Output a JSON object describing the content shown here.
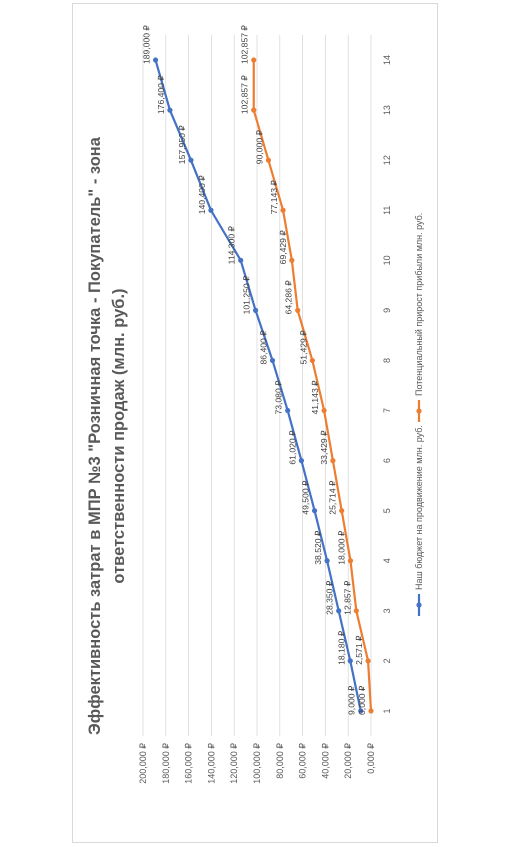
{
  "chart_data": {
    "type": "line",
    "title_line1": "Эффективность затрат в МПР №3 \"Розничная точка - Покупатель\" - зона",
    "title_line2": "ответственности  продаж (млн. руб.)",
    "x": [
      1,
      2,
      3,
      4,
      5,
      6,
      7,
      8,
      9,
      10,
      11,
      12,
      13,
      14
    ],
    "x_ticks": [
      "1",
      "2",
      "3",
      "4",
      "5",
      "6",
      "7",
      "8",
      "9",
      "10",
      "11",
      "12",
      "13",
      "14"
    ],
    "y_ticks": [
      "0,000 ₽",
      "20,000 ₽",
      "40,000 ₽",
      "60,000 ₽",
      "80,000 ₽",
      "100,000 ₽",
      "120,000 ₽",
      "140,000 ₽",
      "160,000 ₽",
      "180,000 ₽",
      "200,000 ₽"
    ],
    "ylim": [
      0,
      200000
    ],
    "grid": true,
    "legend_position": "bottom",
    "series": [
      {
        "name": "Наш бюджет на продвижение млн. руб.",
        "color": "#4472c4",
        "values": [
          9000,
          18180,
          28350,
          38520,
          49500,
          61020,
          73080,
          86400,
          101250,
          114300,
          140400,
          157950,
          176400,
          189000
        ],
        "labels": [
          "9,000 ₽",
          "18,180 ₽",
          "28,350 ₽",
          "38,520 ₽",
          "49,500 ₽",
          "61,020 ₽",
          "73,080 ₽",
          "86,400 ₽",
          "101,250 ₽",
          "114,300 ₽",
          "140,400 ₽",
          "157,950 ₽",
          "176,400 ₽",
          "189,000 ₽"
        ]
      },
      {
        "name": "Потенциальный прирост прибыли млн. руб.",
        "color": "#ed7d31",
        "values": [
          0,
          2571,
          12857,
          18000,
          25714,
          33429,
          41143,
          51429,
          64286,
          69429,
          77143,
          90000,
          102857,
          102857
        ],
        "labels": [
          "0,000 ₽",
          "2,571 ₽",
          "12,857 ₽",
          "18,000 ₽",
          "25,714 ₽",
          "33,429 ₽",
          "41,143 ₽",
          "51,429 ₽",
          "64,286 ₽",
          "69,429 ₽",
          "77,143 ₽",
          "90,000 ₽",
          "102,857 ₽",
          "102,857 ₽"
        ]
      }
    ]
  }
}
